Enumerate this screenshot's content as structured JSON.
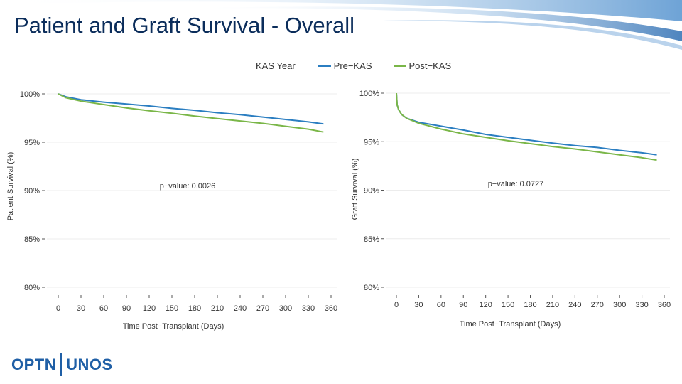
{
  "slide": {
    "title": "Patient and Graft Survival - Overall",
    "logo_left": "OPTN",
    "logo_right": "UNOS"
  },
  "legend": {
    "title": "KAS Year",
    "items": [
      {
        "name": "Pre−KAS",
        "color": "#2b7ec1"
      },
      {
        "name": "Post−KAS",
        "color": "#7ab648"
      }
    ]
  },
  "chart_data": [
    {
      "type": "line",
      "title": "Patient Survival",
      "xlabel": "Time Post−Transplant (Days)",
      "ylabel": "Patient Survival (%)",
      "xticks": [
        0,
        30,
        60,
        90,
        120,
        150,
        180,
        210,
        240,
        270,
        300,
        330,
        360
      ],
      "ylim": [
        80,
        100
      ],
      "yticks": [
        {
          "value": 100,
          "label": "100%"
        },
        {
          "value": 95,
          "label": "95%"
        },
        {
          "value": 90,
          "label": "90%"
        },
        {
          "value": 85,
          "label": "85%"
        },
        {
          "value": 80,
          "label": "80%"
        }
      ],
      "annotation": "p−value: 0.0026",
      "series": [
        {
          "name": "Pre−KAS",
          "color": "#2b7ec1",
          "x": [
            0,
            10,
            30,
            60,
            90,
            120,
            150,
            180,
            210,
            240,
            270,
            300,
            330,
            350
          ],
          "y": [
            100,
            99.7,
            99.4,
            99.15,
            98.95,
            98.75,
            98.5,
            98.3,
            98.05,
            97.85,
            97.6,
            97.35,
            97.1,
            96.9
          ]
        },
        {
          "name": "Post−KAS",
          "color": "#7ab648",
          "x": [
            0,
            10,
            30,
            60,
            90,
            120,
            150,
            180,
            210,
            240,
            270,
            300,
            330,
            350
          ],
          "y": [
            100,
            99.6,
            99.25,
            98.9,
            98.55,
            98.25,
            98.0,
            97.7,
            97.45,
            97.2,
            96.95,
            96.65,
            96.35,
            96.05
          ]
        }
      ]
    },
    {
      "type": "line",
      "title": "Graft Survival",
      "xlabel": "Time Post−Transplant (Days)",
      "ylabel": "Graft Survival (%)",
      "xticks": [
        0,
        30,
        60,
        90,
        120,
        150,
        180,
        210,
        240,
        270,
        300,
        330,
        360
      ],
      "ylim": [
        80,
        100
      ],
      "yticks": [
        {
          "value": 100,
          "label": "100%"
        },
        {
          "value": 95,
          "label": "95%"
        },
        {
          "value": 90,
          "label": "90%"
        },
        {
          "value": 85,
          "label": "85%"
        },
        {
          "value": 80,
          "label": "80%"
        }
      ],
      "annotation": "p−value: 0.0727",
      "series": [
        {
          "name": "Pre−KAS",
          "color": "#2b7ec1",
          "x": [
            0,
            1,
            3,
            7,
            14,
            30,
            60,
            90,
            120,
            150,
            180,
            210,
            240,
            270,
            300,
            330,
            350
          ],
          "y": [
            100,
            98.8,
            98.3,
            97.8,
            97.4,
            97.0,
            96.6,
            96.2,
            95.75,
            95.45,
            95.15,
            94.85,
            94.6,
            94.4,
            94.1,
            93.85,
            93.65
          ]
        },
        {
          "name": "Post−KAS",
          "color": "#7ab648",
          "x": [
            0,
            1,
            3,
            7,
            14,
            30,
            60,
            90,
            120,
            150,
            180,
            210,
            240,
            270,
            300,
            330,
            350
          ],
          "y": [
            100,
            98.8,
            98.3,
            97.8,
            97.4,
            96.9,
            96.3,
            95.8,
            95.45,
            95.1,
            94.8,
            94.5,
            94.25,
            93.95,
            93.65,
            93.35,
            93.1
          ]
        }
      ]
    }
  ]
}
